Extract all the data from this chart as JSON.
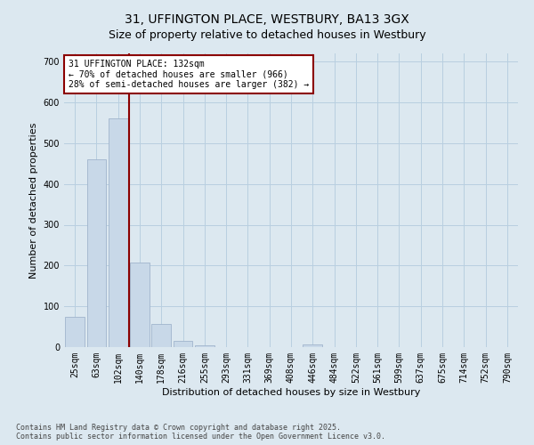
{
  "title": "31, UFFINGTON PLACE, WESTBURY, BA13 3GX",
  "subtitle": "Size of property relative to detached houses in Westbury",
  "xlabel": "Distribution of detached houses by size in Westbury",
  "ylabel": "Number of detached properties",
  "categories": [
    "25sqm",
    "63sqm",
    "102sqm",
    "140sqm",
    "178sqm",
    "216sqm",
    "255sqm",
    "293sqm",
    "331sqm",
    "369sqm",
    "408sqm",
    "446sqm",
    "484sqm",
    "522sqm",
    "561sqm",
    "599sqm",
    "637sqm",
    "675sqm",
    "714sqm",
    "752sqm",
    "790sqm"
  ],
  "bar_heights": [
    75,
    460,
    560,
    207,
    57,
    15,
    4,
    0,
    0,
    0,
    0,
    6,
    0,
    0,
    0,
    0,
    0,
    0,
    0,
    0,
    0
  ],
  "bar_color": "#c8d8e8",
  "bar_edgecolor": "#a0b4cc",
  "grid_color": "#b8cfe0",
  "bg_color": "#dce8f0",
  "fig_bg_color": "#dce8f0",
  "vline_color": "#8b0000",
  "annotation_text": "31 UFFINGTON PLACE: 132sqm\n← 70% of detached houses are smaller (966)\n28% of semi-detached houses are larger (382) →",
  "annotation_box_color": "#8b0000",
  "ylim": [
    0,
    720
  ],
  "yticks": [
    0,
    100,
    200,
    300,
    400,
    500,
    600,
    700
  ],
  "footer": "Contains HM Land Registry data © Crown copyright and database right 2025.\nContains public sector information licensed under the Open Government Licence v3.0.",
  "title_fontsize": 10,
  "subtitle_fontsize": 9,
  "tick_fontsize": 7,
  "ylabel_fontsize": 8,
  "xlabel_fontsize": 8,
  "footer_fontsize": 6
}
